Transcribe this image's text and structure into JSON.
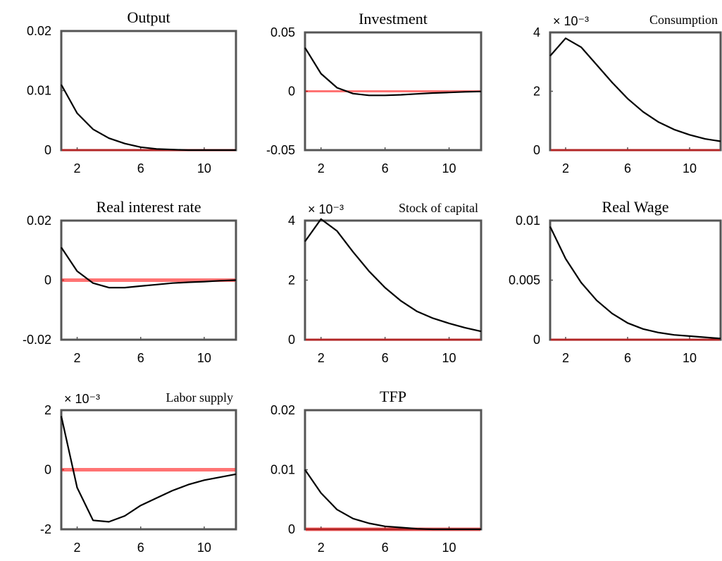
{
  "figure": {
    "colors": {
      "response": "#000000",
      "zero_line": "#ff6666",
      "frame": "#555555"
    }
  },
  "chart_data": [
    {
      "type": "line",
      "title": "Output",
      "exponent_label": "",
      "x": [
        1,
        2,
        3,
        4,
        5,
        6,
        7,
        8,
        9,
        10,
        11,
        12
      ],
      "series": [
        {
          "values": [
            0.011,
            0.0062,
            0.0035,
            0.002,
            0.0011,
            0.0005,
            0.0002,
            0.0001,
            0.0,
            0.0,
            0.0,
            0.0
          ]
        }
      ],
      "xlim": [
        1,
        12
      ],
      "ylim": [
        0,
        0.02
      ],
      "xticks": [
        2,
        6,
        10
      ],
      "xtick_labels": [
        "2",
        "6",
        "10"
      ],
      "yticks": [
        0,
        0.01,
        0.02
      ],
      "ytick_labels": [
        "0",
        "0.01",
        "0.02"
      ],
      "zero_line": 0
    },
    {
      "type": "line",
      "title": "Investment",
      "exponent_label": "",
      "x": [
        1,
        2,
        3,
        4,
        5,
        6,
        7,
        8,
        9,
        10,
        11,
        12
      ],
      "series": [
        {
          "values": [
            0.037,
            0.015,
            0.003,
            -0.002,
            -0.0035,
            -0.0035,
            -0.003,
            -0.0022,
            -0.0015,
            -0.001,
            -0.0005,
            -0.0002
          ]
        }
      ],
      "xlim": [
        1,
        12
      ],
      "ylim": [
        -0.05,
        0.05
      ],
      "xticks": [
        2,
        6,
        10
      ],
      "xtick_labels": [
        "2",
        "6",
        "10"
      ],
      "yticks": [
        -0.05,
        0,
        0.05
      ],
      "ytick_labels": [
        "-0.05",
        "0",
        "0.05"
      ],
      "zero_line": 0
    },
    {
      "type": "line",
      "title": "Consumption",
      "exponent_label": "× 10⁻³",
      "x": [
        1,
        2,
        3,
        4,
        5,
        6,
        7,
        8,
        9,
        10,
        11,
        12
      ],
      "series": [
        {
          "values": [
            3.2,
            3.8,
            3.5,
            2.9,
            2.3,
            1.75,
            1.3,
            0.95,
            0.7,
            0.52,
            0.38,
            0.3
          ]
        }
      ],
      "xlim": [
        1,
        12
      ],
      "ylim": [
        0,
        4
      ],
      "xticks": [
        2,
        6,
        10
      ],
      "xtick_labels": [
        "2",
        "6",
        "10"
      ],
      "yticks": [
        0,
        2,
        4
      ],
      "ytick_labels": [
        "0",
        "2",
        "4"
      ],
      "zero_line": 0
    },
    {
      "type": "line",
      "title": "Real interest rate",
      "exponent_label": "",
      "x": [
        1,
        2,
        3,
        4,
        5,
        6,
        7,
        8,
        9,
        10,
        11,
        12
      ],
      "series": [
        {
          "values": [
            0.011,
            0.003,
            -0.001,
            -0.0025,
            -0.0025,
            -0.002,
            -0.0015,
            -0.001,
            -0.0007,
            -0.0005,
            -0.0002,
            0.0
          ]
        }
      ],
      "xlim": [
        1,
        12
      ],
      "ylim": [
        -0.02,
        0.02
      ],
      "xticks": [
        2,
        6,
        10
      ],
      "xtick_labels": [
        "2",
        "6",
        "10"
      ],
      "yticks": [
        -0.02,
        0,
        0.02
      ],
      "ytick_labels": [
        "-0.02",
        "0",
        "0.02"
      ],
      "zero_line": 0
    },
    {
      "type": "line",
      "title": "Stock of capital",
      "exponent_label": "× 10⁻³",
      "x": [
        1,
        2,
        3,
        4,
        5,
        6,
        7,
        8,
        9,
        10,
        11,
        12
      ],
      "series": [
        {
          "values": [
            3.3,
            4.05,
            3.65,
            2.95,
            2.3,
            1.75,
            1.3,
            0.95,
            0.72,
            0.55,
            0.4,
            0.28
          ]
        }
      ],
      "xlim": [
        1,
        12
      ],
      "ylim": [
        0,
        4
      ],
      "xticks": [
        2,
        6,
        10
      ],
      "xtick_labels": [
        "2",
        "6",
        "10"
      ],
      "yticks": [
        0,
        2,
        4
      ],
      "ytick_labels": [
        "0",
        "2",
        "4"
      ],
      "zero_line": 0
    },
    {
      "type": "line",
      "title": "Real Wage",
      "exponent_label": "",
      "x": [
        1,
        2,
        3,
        4,
        5,
        6,
        7,
        8,
        9,
        10,
        11,
        12
      ],
      "series": [
        {
          "values": [
            0.0095,
            0.0068,
            0.0048,
            0.0033,
            0.0022,
            0.0014,
            0.0009,
            0.0006,
            0.0004,
            0.0003,
            0.0002,
            0.0001
          ]
        }
      ],
      "xlim": [
        1,
        12
      ],
      "ylim": [
        0,
        0.01
      ],
      "xticks": [
        2,
        6,
        10
      ],
      "xtick_labels": [
        "2",
        "6",
        "10"
      ],
      "yticks": [
        0,
        0.005,
        0.01
      ],
      "ytick_labels": [
        "0",
        "0.005",
        "0.01"
      ],
      "zero_line": 0
    },
    {
      "type": "line",
      "title": "Labor supply",
      "exponent_label": "× 10⁻³",
      "x": [
        1,
        2,
        3,
        4,
        5,
        6,
        7,
        8,
        9,
        10,
        11,
        12
      ],
      "series": [
        {
          "values": [
            1.8,
            -0.6,
            -1.7,
            -1.75,
            -1.55,
            -1.2,
            -0.95,
            -0.7,
            -0.5,
            -0.35,
            -0.25,
            -0.15
          ]
        }
      ],
      "xlim": [
        1,
        12
      ],
      "ylim": [
        -2,
        2
      ],
      "xticks": [
        2,
        6,
        10
      ],
      "xtick_labels": [
        "2",
        "6",
        "10"
      ],
      "yticks": [
        -2,
        0,
        2
      ],
      "ytick_labels": [
        "-2",
        "0",
        "2"
      ],
      "zero_line": 0
    },
    {
      "type": "line",
      "title": "TFP",
      "exponent_label": "",
      "x": [
        1,
        2,
        3,
        4,
        5,
        6,
        7,
        8,
        9,
        10,
        11,
        12
      ],
      "series": [
        {
          "values": [
            0.01,
            0.0061,
            0.0033,
            0.0018,
            0.001,
            0.0005,
            0.0003,
            0.0001,
            0.0,
            0.0,
            0.0,
            0.0
          ]
        }
      ],
      "xlim": [
        1,
        12
      ],
      "ylim": [
        0,
        0.02
      ],
      "xticks": [
        2,
        6,
        10
      ],
      "xtick_labels": [
        "2",
        "6",
        "10"
      ],
      "yticks": [
        0,
        0.01,
        0.02
      ],
      "ytick_labels": [
        "0",
        "0.01",
        "0.02"
      ],
      "zero_line": 0
    }
  ]
}
